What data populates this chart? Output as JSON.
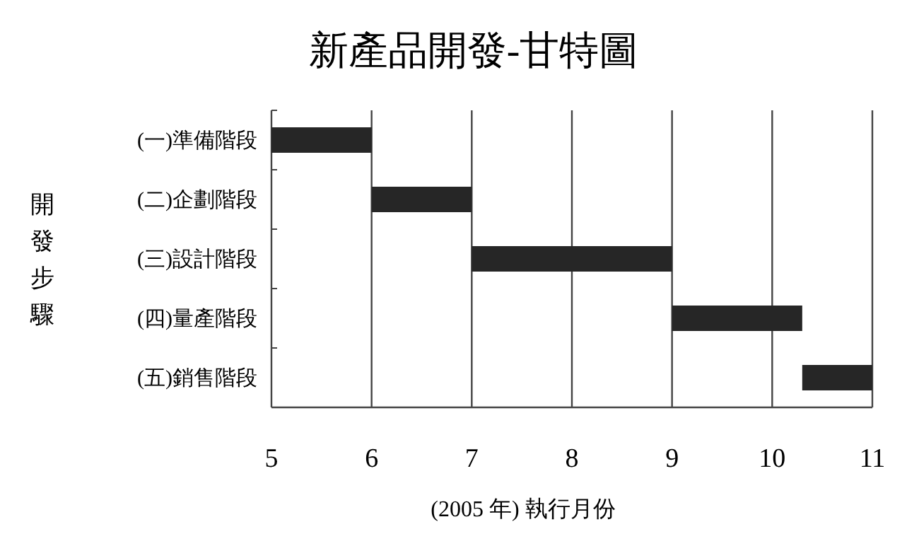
{
  "chart_data": {
    "type": "bar",
    "orientation": "horizontal",
    "title": "新產品開發-甘特圖",
    "xlabel": "(2005 年)  執行月份",
    "ylabel": "開發步驟",
    "categories": [
      "(一)準備階段",
      "(二)企劃階段",
      "(三)設計階段",
      "(四)量產階段",
      "(五)銷售階段"
    ],
    "values": [
      1,
      1,
      2,
      1.3,
      0.7
    ],
    "base": [
      5,
      6,
      7,
      9,
      10.3
    ],
    "color": "#262626",
    "xlim": [
      5,
      11
    ],
    "xticks": [
      5,
      6,
      7,
      8,
      9,
      10,
      11
    ],
    "grid": "x"
  }
}
